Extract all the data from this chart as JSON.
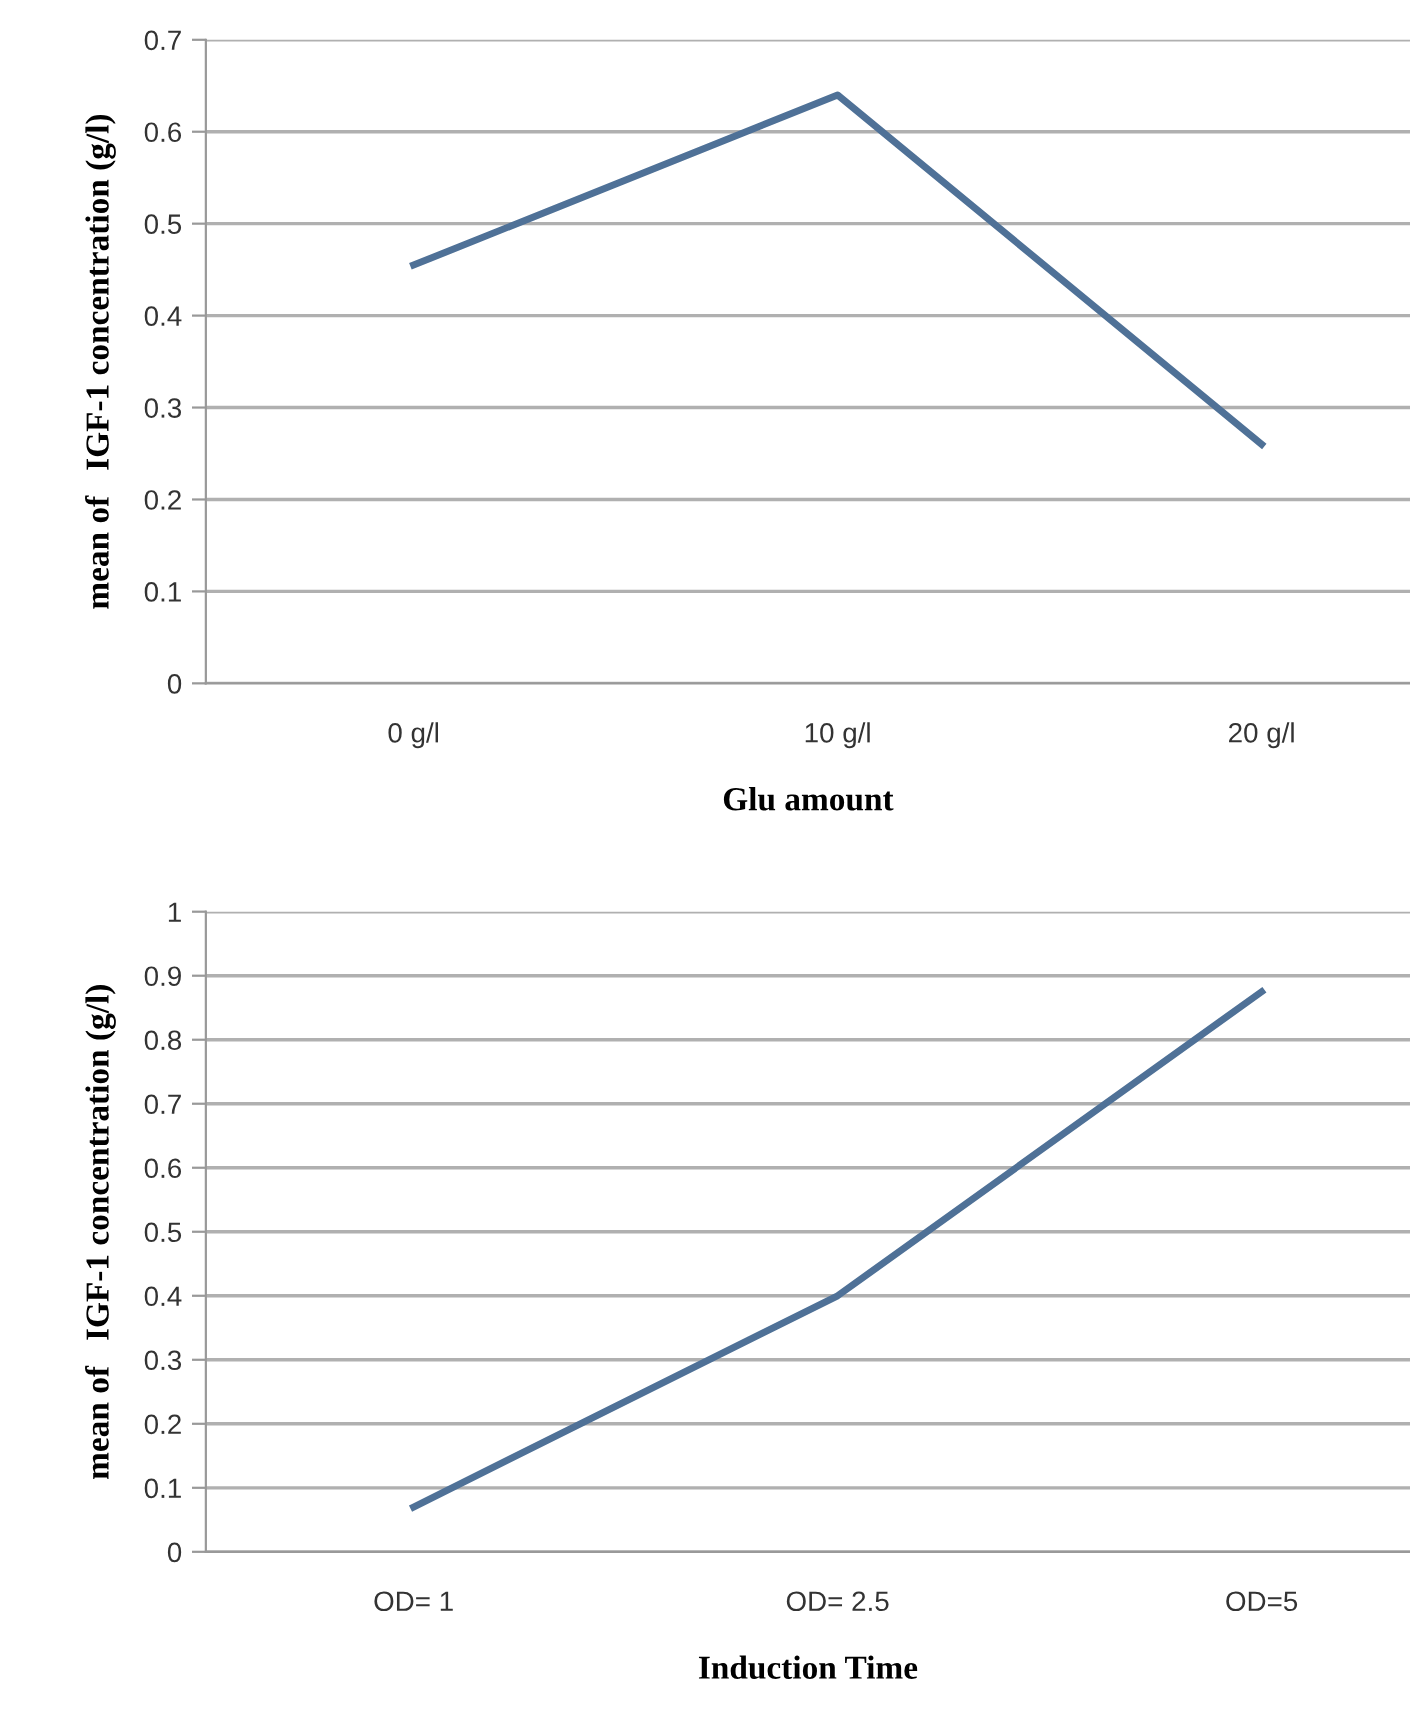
{
  "chart_data": [
    {
      "type": "line",
      "xlabel": "Glu amount",
      "ylabel": "mean of   IGF-1 concentration (g/l)",
      "categories": [
        "0 g/l",
        "10 g/l",
        "20 g/l"
      ],
      "series": [
        {
          "color": "#4f7197",
          "values": [
            0.455,
            0.64,
            0.26
          ]
        }
      ],
      "ylim": [
        0,
        0.7
      ],
      "yticks": [
        0,
        0.1,
        0.2,
        0.3,
        0.4,
        0.5,
        0.6,
        0.7
      ],
      "grid": "y",
      "legend": false,
      "marker": "none",
      "line_style": "solid"
    },
    {
      "type": "line",
      "xlabel": "Induction Time",
      "ylabel": "mean of   IGF-1 concentration (g/l)",
      "categories": [
        "OD= 1",
        "OD= 2.5",
        "OD=5"
      ],
      "series": [
        {
          "color": "#4f7197",
          "values": [
            0.07,
            0.4,
            0.875
          ]
        }
      ],
      "ylim": [
        0,
        1
      ],
      "yticks": [
        0,
        0.1,
        0.2,
        0.3,
        0.4,
        0.5,
        0.6,
        0.7,
        0.8,
        0.9,
        1
      ],
      "grid": "y",
      "legend": false,
      "marker": "none",
      "line_style": "solid"
    }
  ]
}
